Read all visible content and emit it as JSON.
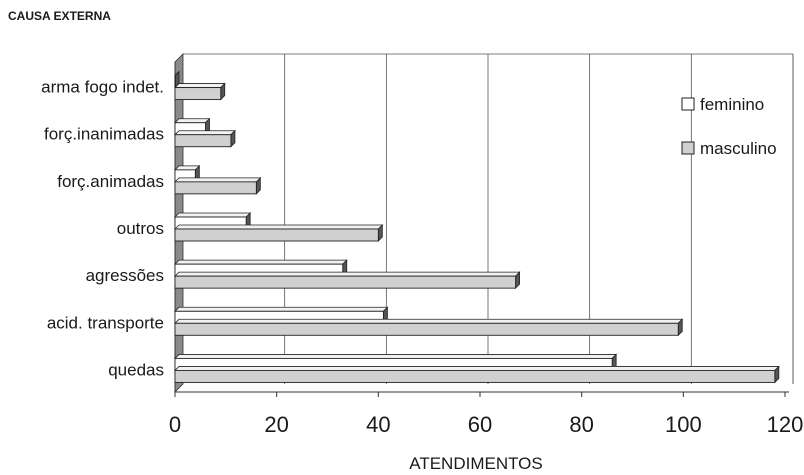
{
  "chart_data": {
    "type": "bar",
    "orientation": "horizontal",
    "title": "CAUSA EXTERNA",
    "xlabel": "ATENDIMENTOS",
    "ylabel": "",
    "categories": [
      "quedas",
      "acid. transporte",
      "agressões",
      "outros",
      "forç.animadas",
      "forç.inanimadas",
      "arma fogo indet."
    ],
    "series": [
      {
        "name": "feminino",
        "values": [
          86,
          41,
          33,
          14,
          4,
          6,
          0
        ],
        "color": "#ffffff"
      },
      {
        "name": "masculino",
        "values": [
          118,
          99,
          67,
          40,
          16,
          11,
          9
        ],
        "color": "#d0d0d0"
      }
    ],
    "xlim": [
      0,
      120
    ],
    "xticks": [
      "0",
      "20",
      "40",
      "60",
      "80",
      "100",
      "120"
    ],
    "grid": true,
    "legend_position": "right",
    "style": "3d"
  }
}
